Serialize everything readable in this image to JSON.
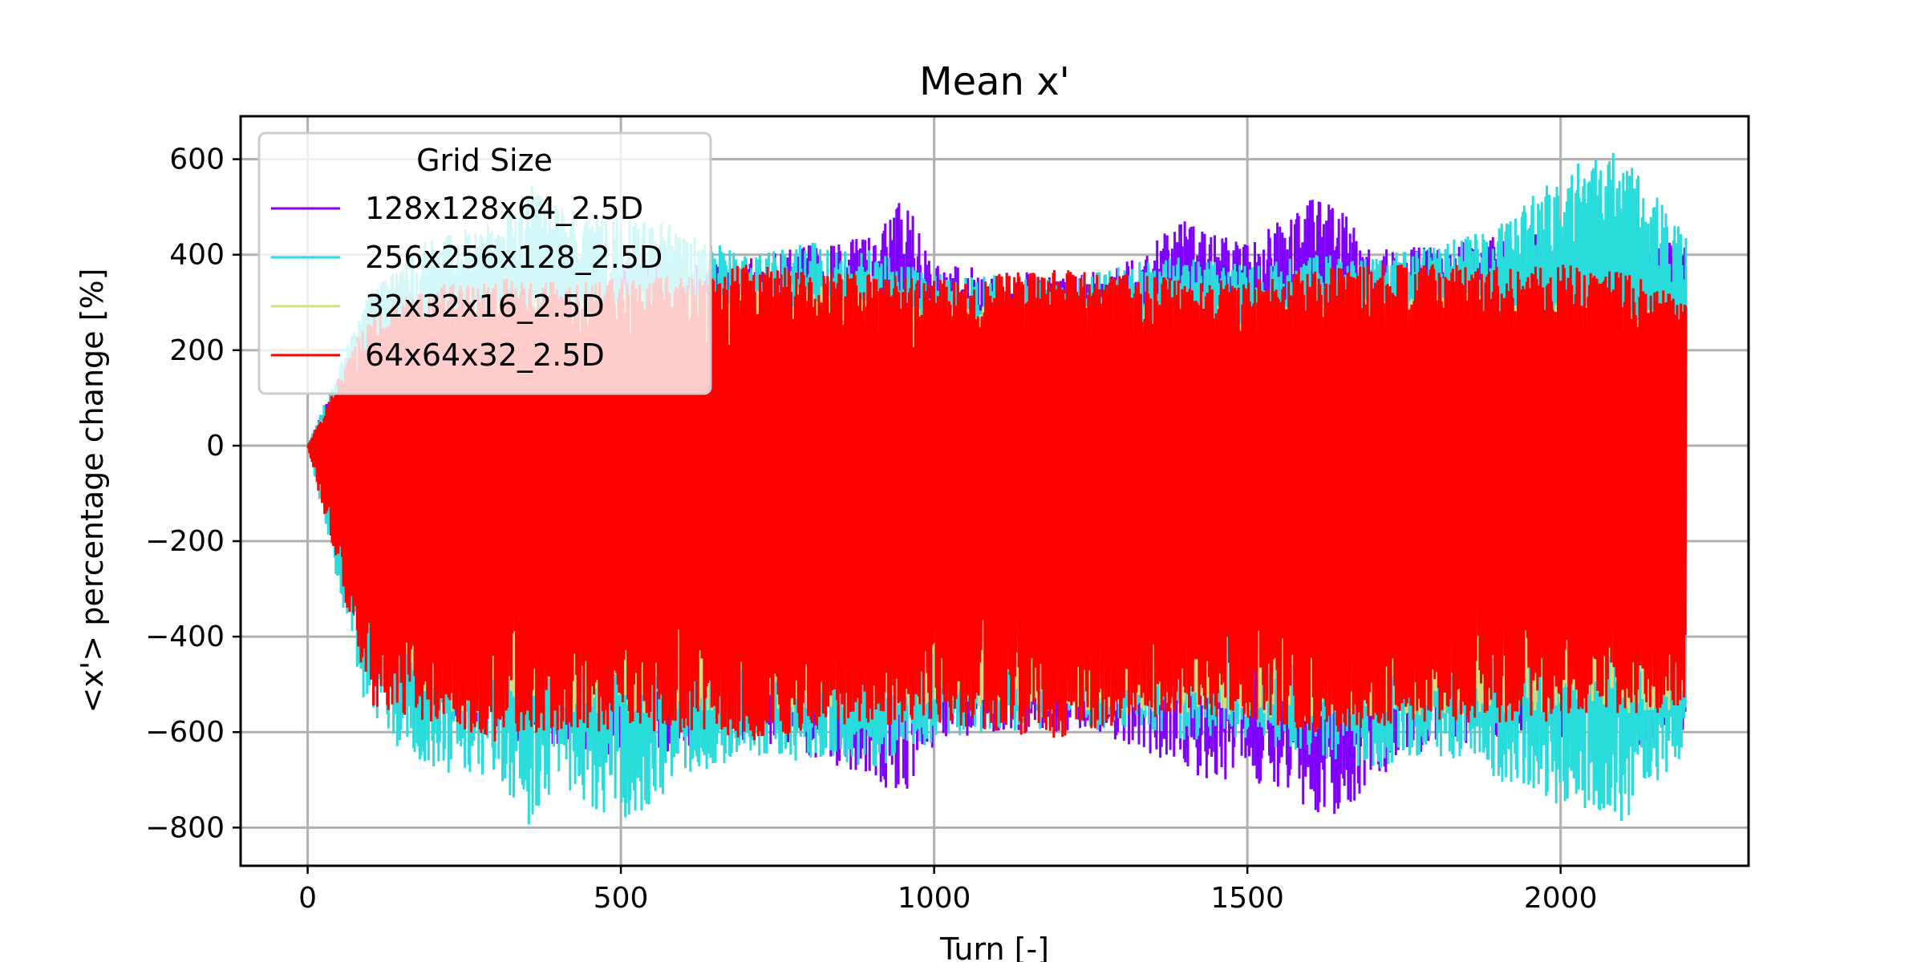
{
  "chart_data": {
    "type": "line",
    "title": "Mean x'",
    "xlabel": "Turn [-]",
    "ylabel": "<x'> percentage change [%]",
    "xlim": [
      -107,
      2300
    ],
    "ylim": [
      -880,
      690
    ],
    "xticks": [
      0,
      500,
      1000,
      1500,
      2000
    ],
    "yticks": [
      -800,
      -600,
      -400,
      -200,
      0,
      200,
      400,
      600
    ],
    "xtick_labels": [
      "0",
      "500",
      "1000",
      "1500",
      "2000"
    ],
    "ytick_labels": [
      "−800",
      "−600",
      "−400",
      "−200",
      "0",
      "200",
      "400",
      "600"
    ],
    "grid": true,
    "legend": {
      "title": "Grid Size",
      "placement": "upper left"
    },
    "x_range": [
      0,
      2200
    ],
    "series": [
      {
        "name": "128x128x64_2.5D",
        "color": "#8000ff",
        "envelope_x": [
          0,
          100,
          200,
          300,
          400,
          500,
          600,
          700,
          800,
          900,
          950,
          1000,
          1100,
          1200,
          1300,
          1350,
          1400,
          1500,
          1600,
          1650,
          1700,
          1800,
          1900,
          2000,
          2100,
          2200
        ],
        "upper": [
          0,
          300,
          360,
          380,
          380,
          390,
          380,
          390,
          420,
          440,
          540,
          380,
          370,
          360,
          380,
          430,
          470,
          420,
          520,
          500,
          410,
          420,
          440,
          450,
          460,
          420
        ],
        "lower": [
          0,
          -500,
          -560,
          -620,
          -640,
          -650,
          -640,
          -630,
          -650,
          -700,
          -740,
          -630,
          -600,
          -600,
          -620,
          -660,
          -700,
          -700,
          -760,
          -790,
          -700,
          -640,
          -620,
          -620,
          -640,
          -600
        ]
      },
      {
        "name": "256x256x128_2.5D",
        "color": "#29dcdc",
        "envelope_x": [
          0,
          100,
          200,
          300,
          350,
          400,
          500,
          600,
          700,
          800,
          900,
          1000,
          1100,
          1200,
          1300,
          1400,
          1500,
          1600,
          1700,
          1800,
          1900,
          2000,
          2050,
          2100,
          2200
        ],
        "upper": [
          0,
          330,
          440,
          470,
          560,
          500,
          480,
          460,
          400,
          430,
          410,
          360,
          360,
          350,
          380,
          400,
          380,
          400,
          400,
          420,
          460,
          580,
          600,
          620,
          440
        ],
        "lower": [
          0,
          -600,
          -680,
          -700,
          -800,
          -720,
          -800,
          -700,
          -660,
          -660,
          -680,
          -620,
          -600,
          -590,
          -600,
          -620,
          -620,
          -650,
          -680,
          -650,
          -700,
          -760,
          -770,
          -790,
          -640
        ]
      },
      {
        "name": "32x32x16_2.5D",
        "color": "#d4dd80",
        "envelope_x": [
          0,
          200,
          400,
          600,
          800,
          1000,
          1200,
          1400,
          1600,
          1850,
          2000,
          2200
        ],
        "upper": [
          0,
          300,
          320,
          320,
          340,
          300,
          290,
          300,
          300,
          320,
          300,
          280
        ],
        "lower": [
          0,
          -560,
          -560,
          -560,
          -560,
          -540,
          -560,
          -560,
          -580,
          -560,
          -560,
          -560
        ]
      },
      {
        "name": "64x64x32_2.5D",
        "color": "#ff0000",
        "envelope_x": [
          0,
          100,
          200,
          300,
          400,
          500,
          600,
          700,
          800,
          900,
          1000,
          1100,
          1200,
          1300,
          1400,
          1500,
          1600,
          1700,
          1800,
          1900,
          2000,
          2100,
          2200
        ],
        "upper": [
          0,
          280,
          340,
          350,
          350,
          350,
          360,
          380,
          370,
          360,
          350,
          360,
          370,
          360,
          350,
          350,
          370,
          380,
          380,
          380,
          380,
          370,
          300
        ],
        "lower": [
          0,
          -550,
          -580,
          -620,
          -600,
          -600,
          -600,
          -620,
          -600,
          -590,
          -580,
          -600,
          -620,
          -580,
          -560,
          -580,
          -600,
          -600,
          -580,
          -580,
          -580,
          -560,
          -560
        ]
      }
    ]
  }
}
